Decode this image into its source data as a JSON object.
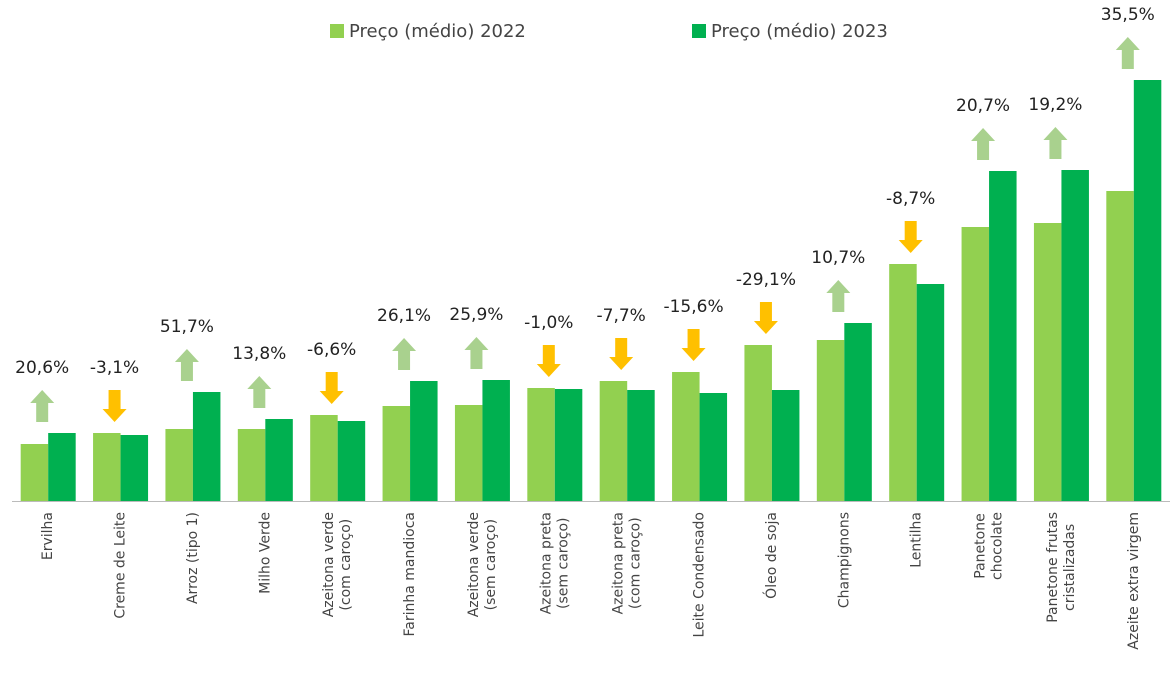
{
  "chart_data": {
    "type": "bar",
    "categories": [
      [
        "Ervilha"
      ],
      [
        "Creme de Leite"
      ],
      [
        "Arroz (tipo 1)"
      ],
      [
        "Milho Verde"
      ],
      [
        "Azeitona verde",
        "(com caroço)"
      ],
      [
        "Farinha mandioca"
      ],
      [
        "Azeitona verde",
        "(sem caroço)"
      ],
      [
        "Azeitona preta",
        "(sem caroço)"
      ],
      [
        "Azeitona preta",
        "(com caroço)"
      ],
      [
        "Leite Condensado"
      ],
      [
        "Óleo de soja"
      ],
      [
        "Champignons"
      ],
      [
        "Lentilha"
      ],
      [
        "Panetone",
        "chocolate"
      ],
      [
        "Panetone frutas",
        "cristalizadas"
      ],
      [
        "Azeite extra virgem"
      ]
    ],
    "series": [
      {
        "name": "Preço (médio) 2022",
        "color": "#92d050",
        "values": [
          57,
          68,
          72,
          72,
          86,
          95,
          96,
          113,
          120,
          129,
          156,
          161,
          237,
          274,
          278,
          310
        ]
      },
      {
        "name": "Preço (médio) 2023",
        "color": "#00b050",
        "values": [
          68,
          66,
          109,
          82,
          80,
          120,
          121,
          112,
          111,
          108,
          111,
          178,
          217,
          330,
          331,
          421
        ]
      }
    ],
    "changes": [
      20.6,
      -3.1,
      51.7,
      13.8,
      -6.6,
      26.1,
      25.9,
      -1.0,
      -7.7,
      -15.6,
      -29.1,
      10.7,
      -8.7,
      20.7,
      19.2,
      35.5
    ],
    "change_labels": [
      "20,6%",
      "-3,1%",
      "51,7%",
      "13,8%",
      "-6,6%",
      "26,1%",
      "25,9%",
      "-1,0%",
      "-7,7%",
      "-15,6%",
      "-29,1%",
      "10,7%",
      "-8,7%",
      "20,7%",
      "19,2%",
      "35,5%"
    ],
    "up_color": "#a9d18e",
    "down_color": "#ffc000",
    "ylim": [
      0,
      430
    ]
  }
}
